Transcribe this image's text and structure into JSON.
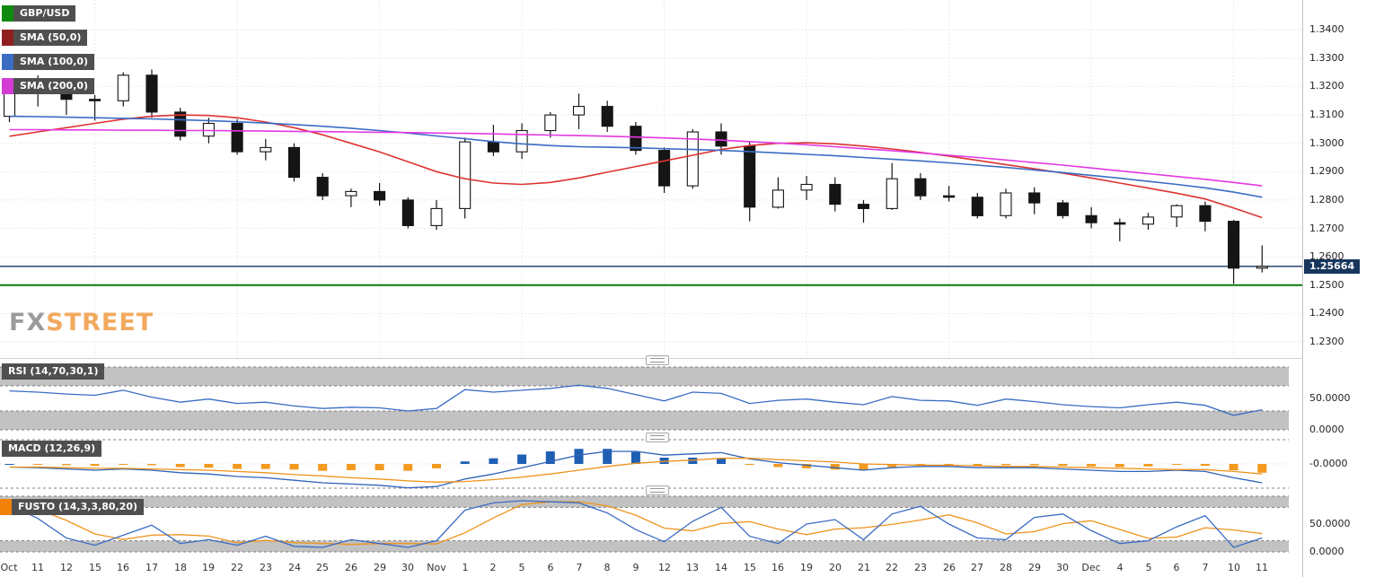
{
  "watermark": {
    "fx": "FX",
    "street": "STREET"
  },
  "legend": [
    {
      "label": "GBP/USD",
      "color": "#0e8a10"
    },
    {
      "label": "SMA (50,0)",
      "color": "#8f1f1f"
    },
    {
      "label": "SMA (100,0)",
      "color": "#3b6cc4"
    },
    {
      "label": "SMA (200,0)",
      "color": "#d43bd4"
    }
  ],
  "price_axis": {
    "tick_labels": [
      "1.3400",
      "1.3300",
      "1.3200",
      "1.3100",
      "1.3000",
      "1.2900",
      "1.2800",
      "1.2700",
      "1.2600",
      "1.2500",
      "1.2400",
      "1.2300"
    ],
    "current_price_label": "1.25664",
    "badge_color": "#16365c"
  },
  "x_axis": {
    "tick_labels": [
      "Oct",
      "11",
      "12",
      "15",
      "16",
      "17",
      "18",
      "19",
      "22",
      "23",
      "24",
      "25",
      "26",
      "29",
      "30",
      "Nov",
      "1",
      "2",
      "5",
      "6",
      "7",
      "8",
      "9",
      "12",
      "13",
      "14",
      "15",
      "16",
      "19",
      "20",
      "21",
      "22",
      "23",
      "26",
      "27",
      "28",
      "29",
      "30",
      "Dec",
      "4",
      "5",
      "6",
      "7",
      "10",
      "11"
    ]
  },
  "panels": {
    "rsi": {
      "label": "RSI (14,70,30,1)",
      "axis_labels": [
        {
          "text": "50.0000",
          "value": 50
        },
        {
          "text": "0.0000",
          "value": 0
        }
      ]
    },
    "macd": {
      "label": "MACD (12,26,9)",
      "axis_labels": [
        {
          "text": "-0.0000",
          "value": 0
        }
      ]
    },
    "fusto": {
      "label": "FUSTO (14,3,3,80,20)",
      "swatch_color": "#f0820a",
      "axis_labels": [
        {
          "text": "50.0000",
          "value": 50
        },
        {
          "text": "0.0000",
          "value": 0
        }
      ]
    }
  },
  "chart_data": [
    {
      "type": "candlestick",
      "name": "GBP/USD",
      "x": [
        "Oct 10",
        "Oct 11",
        "Oct 12",
        "Oct 15",
        "Oct 16",
        "Oct 17",
        "Oct 18",
        "Oct 19",
        "Oct 22",
        "Oct 23",
        "Oct 24",
        "Oct 25",
        "Oct 26",
        "Oct 29",
        "Oct 30",
        "Oct 31",
        "Nov 1",
        "Nov 2",
        "Nov 5",
        "Nov 6",
        "Nov 7",
        "Nov 8",
        "Nov 9",
        "Nov 12",
        "Nov 13",
        "Nov 14",
        "Nov 15",
        "Nov 16",
        "Nov 19",
        "Nov 20",
        "Nov 21",
        "Nov 22",
        "Nov 23",
        "Nov 26",
        "Nov 27",
        "Nov 28",
        "Nov 29",
        "Nov 30",
        "Dec 3",
        "Dec 4",
        "Dec 5",
        "Dec 6",
        "Dec 7",
        "Dec 10",
        "Dec 11"
      ],
      "ohlc": [
        [
          1.3095,
          1.3225,
          1.3075,
          1.32
        ],
        [
          1.32,
          1.324,
          1.313,
          1.318
        ],
        [
          1.318,
          1.323,
          1.31,
          1.3155
        ],
        [
          1.3155,
          1.317,
          1.308,
          1.315
        ],
        [
          1.315,
          1.325,
          1.313,
          1.324
        ],
        [
          1.324,
          1.326,
          1.309,
          1.311
        ],
        [
          1.311,
          1.3125,
          1.301,
          1.3025
        ],
        [
          1.3025,
          1.309,
          1.3,
          1.307
        ],
        [
          1.307,
          1.3085,
          1.296,
          1.297
        ],
        [
          1.297,
          1.3015,
          1.294,
          1.2985
        ],
        [
          1.2985,
          1.3,
          1.2865,
          1.288
        ],
        [
          1.288,
          1.2895,
          1.28,
          1.2815
        ],
        [
          1.2815,
          1.284,
          1.2775,
          1.283
        ],
        [
          1.283,
          1.286,
          1.278,
          1.28
        ],
        [
          1.28,
          1.281,
          1.27,
          1.271
        ],
        [
          1.271,
          1.28,
          1.2695,
          1.277
        ],
        [
          1.277,
          1.302,
          1.2735,
          1.3005
        ],
        [
          1.3005,
          1.3065,
          1.2955,
          1.297
        ],
        [
          1.297,
          1.307,
          1.2945,
          1.3045
        ],
        [
          1.3045,
          1.311,
          1.302,
          1.31
        ],
        [
          1.31,
          1.3175,
          1.305,
          1.313
        ],
        [
          1.313,
          1.315,
          1.304,
          1.306
        ],
        [
          1.306,
          1.3075,
          1.296,
          1.2975
        ],
        [
          1.2975,
          1.2985,
          1.2825,
          1.285
        ],
        [
          1.285,
          1.305,
          1.284,
          1.304
        ],
        [
          1.304,
          1.307,
          1.296,
          1.299
        ],
        [
          1.299,
          1.3005,
          1.2725,
          1.2775
        ],
        [
          1.2775,
          1.288,
          1.277,
          1.2835
        ],
        [
          1.2835,
          1.2885,
          1.28,
          1.2855
        ],
        [
          1.2855,
          1.288,
          1.276,
          1.2785
        ],
        [
          1.2785,
          1.28,
          1.272,
          1.277
        ],
        [
          1.277,
          1.293,
          1.2765,
          1.2875
        ],
        [
          1.2875,
          1.2895,
          1.28,
          1.2815
        ],
        [
          1.2815,
          1.285,
          1.2795,
          1.281
        ],
        [
          1.281,
          1.2825,
          1.2735,
          1.2745
        ],
        [
          1.2745,
          1.284,
          1.2735,
          1.2825
        ],
        [
          1.2825,
          1.2845,
          1.275,
          1.279
        ],
        [
          1.279,
          1.28,
          1.2735,
          1.2745
        ],
        [
          1.2745,
          1.2775,
          1.27,
          1.272
        ],
        [
          1.272,
          1.2735,
          1.2655,
          1.2715
        ],
        [
          1.2715,
          1.2755,
          1.2695,
          1.274
        ],
        [
          1.274,
          1.2785,
          1.2705,
          1.278
        ],
        [
          1.278,
          1.2795,
          1.269,
          1.2725
        ],
        [
          1.2725,
          1.273,
          1.2505,
          1.256
        ],
        [
          1.256,
          1.264,
          1.2545,
          1.2566
        ]
      ],
      "ylim": [
        1.224,
        1.3505
      ],
      "yticks": [
        1.34,
        1.33,
        1.32,
        1.31,
        1.3,
        1.29,
        1.28,
        1.27,
        1.26,
        1.25,
        1.24,
        1.23
      ],
      "week_grid_indices": [
        3,
        8,
        13,
        18,
        23,
        28,
        33,
        38,
        43
      ],
      "overlays": [
        {
          "name": "SMA 50",
          "color": "#dd3333",
          "values": [
            1.3025,
            1.304,
            1.3055,
            1.307,
            1.3085,
            1.3095,
            1.31,
            1.3098,
            1.309,
            1.3075,
            1.3055,
            1.303,
            1.3,
            1.297,
            1.2935,
            1.29,
            1.2875,
            1.286,
            1.2855,
            1.2862,
            1.2878,
            1.2898,
            1.2918,
            1.2938,
            1.2958,
            1.2978,
            1.2992,
            1.3,
            1.3002,
            1.2998,
            1.299,
            1.298,
            1.2968,
            1.2955,
            1.294,
            1.2925,
            1.291,
            1.2895,
            1.2878,
            1.286,
            1.2842,
            1.2824,
            1.2804,
            1.2772,
            1.2738
          ]
        },
        {
          "name": "SMA 100",
          "color": "#3b6cc4",
          "values": [
            1.3095,
            1.3094,
            1.3092,
            1.309,
            1.3088,
            1.3086,
            1.3083,
            1.308,
            1.3076,
            1.3071,
            1.3066,
            1.306,
            1.3053,
            1.3045,
            1.3036,
            1.3026,
            1.3016,
            1.3006,
            1.2998,
            1.2992,
            1.2988,
            1.2986,
            1.2984,
            1.2981,
            1.2978,
            1.2975,
            1.2971,
            1.2966,
            1.2961,
            1.2956,
            1.295,
            1.2944,
            1.2938,
            1.2931,
            1.2923,
            1.2915,
            1.2906,
            1.2897,
            1.2887,
            1.2877,
            1.2866,
            1.2855,
            1.2843,
            1.2828,
            1.281
          ]
        },
        {
          "name": "SMA 200",
          "color": "#e238e2",
          "values": [
            1.3048,
            1.3048,
            1.3047,
            1.3047,
            1.3046,
            1.3046,
            1.3045,
            1.3045,
            1.3044,
            1.3043,
            1.3042,
            1.3041,
            1.304,
            1.3039,
            1.3038,
            1.3036,
            1.3035,
            1.3033,
            1.3031,
            1.3029,
            1.3027,
            1.3025,
            1.3022,
            1.3019,
            1.3015,
            1.3011,
            1.3006,
            1.3001,
            1.2995,
            1.2988,
            1.2981,
            1.2974,
            1.2966,
            1.2958,
            1.295,
            1.2941,
            1.2932,
            1.2923,
            1.2913,
            1.2903,
            1.2893,
            1.2883,
            1.2873,
            1.2862,
            1.285
          ]
        }
      ],
      "hlines": [
        {
          "price": 1.25664,
          "color": "#16365c",
          "width": 1.4
        },
        {
          "price": 1.25,
          "color": "#0b7a0b",
          "width": 2
        }
      ],
      "last_price": 1.25664
    },
    {
      "type": "line",
      "name": "RSI (14,70,30,1)",
      "range": [
        0,
        100
      ],
      "bands": [
        [
          70,
          100
        ],
        [
          0,
          30
        ]
      ],
      "color": "#3b6cc4",
      "values": [
        62,
        60,
        57,
        55,
        63,
        52,
        44,
        49,
        42,
        44,
        38,
        34,
        36,
        35,
        30,
        34,
        64,
        60,
        63,
        66,
        71,
        66,
        56,
        46,
        60,
        58,
        42,
        47,
        49,
        44,
        40,
        53,
        47,
        46,
        39,
        49,
        45,
        40,
        37,
        35,
        40,
        44,
        39,
        23,
        32
      ]
    },
    {
      "type": "macd",
      "name": "MACD (12,26,9)",
      "macd_color": "#2f62b8",
      "signal_color": "#ef931c",
      "hist_pos_color": "#1e5fb4",
      "hist_neg_color": "#f29a20",
      "macd": [
        -0.0005,
        -0.0006,
        -0.0008,
        -0.001,
        -0.0008,
        -0.001,
        -0.0014,
        -0.0016,
        -0.002,
        -0.0022,
        -0.0026,
        -0.003,
        -0.0032,
        -0.0034,
        -0.0038,
        -0.0036,
        -0.0024,
        -0.0016,
        -0.0006,
        0.0004,
        0.0014,
        0.002,
        0.002,
        0.0014,
        0.0016,
        0.0018,
        0.0008,
        0.0002,
        -0.0002,
        -0.0006,
        -0.001,
        -0.0006,
        -0.0004,
        -0.0004,
        -0.0006,
        -0.0006,
        -0.0006,
        -0.0008,
        -0.001,
        -0.0012,
        -0.0012,
        -0.001,
        -0.0012,
        -0.0022,
        -0.003
      ],
      "signal": [
        -0.0005,
        -0.0005,
        -0.0006,
        -0.0007,
        -0.0007,
        -0.0008,
        -0.0009,
        -0.001,
        -0.0012,
        -0.0014,
        -0.0017,
        -0.0019,
        -0.0022,
        -0.0024,
        -0.0027,
        -0.0029,
        -0.0028,
        -0.0025,
        -0.0021,
        -0.0016,
        -0.001,
        -0.0004,
        0.0001,
        0.0004,
        0.0006,
        0.0009,
        0.0009,
        0.0007,
        0.0005,
        0.0003,
        0.0,
        -0.0001,
        -0.0002,
        -0.0002,
        -0.0003,
        -0.0004,
        -0.0004,
        -0.0005,
        -0.0006,
        -0.0007,
        -0.0008,
        -0.0009,
        -0.0009,
        -0.0012,
        -0.0016
      ]
    },
    {
      "type": "line",
      "name": "FUSTO (14,3,3,80,20)",
      "range": [
        0,
        100
      ],
      "bands": [
        [
          80,
          100
        ],
        [
          0,
          20
        ]
      ],
      "k_color": "#3b6cc4",
      "d_color": "#ef931c",
      "k": [
        85,
        60,
        25,
        12,
        30,
        48,
        15,
        22,
        12,
        28,
        10,
        8,
        22,
        15,
        8,
        20,
        75,
        88,
        92,
        90,
        88,
        70,
        40,
        18,
        55,
        80,
        28,
        15,
        50,
        58,
        22,
        68,
        82,
        50,
        25,
        22,
        62,
        68,
        38,
        15,
        20,
        45,
        65,
        8,
        25
      ],
      "d_smoothing": 3
    }
  ]
}
